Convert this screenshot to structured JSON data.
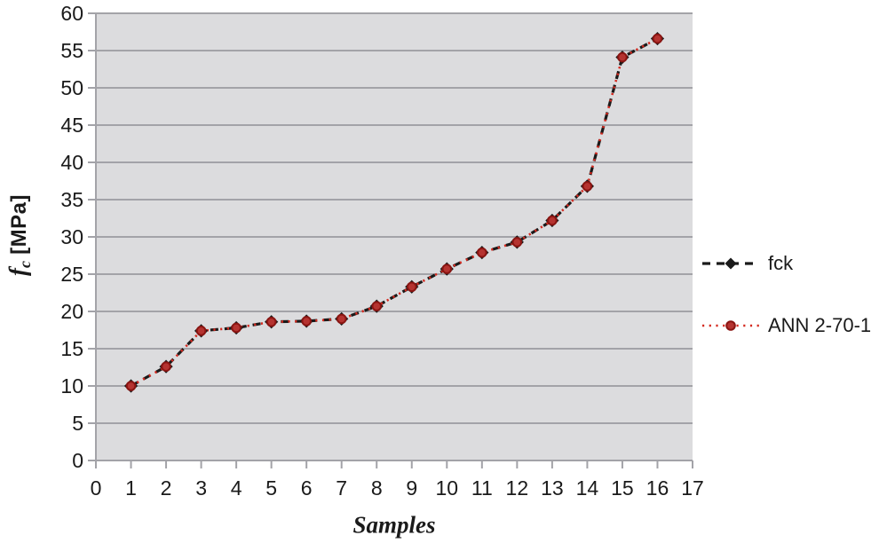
{
  "chart_data": {
    "type": "line",
    "title": "",
    "xlabel": "Samples",
    "ylabel": "fc [MPa]",
    "ylabel_rich": {
      "symbol": "f",
      "subscript": "c",
      "units": "[MPa]"
    },
    "x": [
      1,
      2,
      3,
      4,
      5,
      6,
      7,
      8,
      9,
      10,
      11,
      12,
      13,
      14,
      15,
      16
    ],
    "series": [
      {
        "name": "fck",
        "line_style": "dash",
        "marker": "diamond",
        "color": "#1a1a1a",
        "marker_fill": "#1a1a1a",
        "marker_stroke": "#1a1a1a",
        "values": [
          10.0,
          12.6,
          17.4,
          17.8,
          18.6,
          18.7,
          19.0,
          20.7,
          23.3,
          25.7,
          27.9,
          29.3,
          32.2,
          36.8,
          54.1,
          56.6
        ]
      },
      {
        "name": "ANN 2-70-1",
        "line_style": "dot",
        "marker": "circle",
        "color": "#d42a20",
        "marker_fill": "#b53330",
        "marker_stroke": "#8a1512",
        "values": [
          10.0,
          12.6,
          17.4,
          17.8,
          18.6,
          18.7,
          19.0,
          20.7,
          23.3,
          25.7,
          27.9,
          29.3,
          32.2,
          36.8,
          54.1,
          56.6
        ]
      }
    ],
    "xlim": [
      0,
      17
    ],
    "ylim": [
      0,
      60
    ],
    "x_tick_step": 1,
    "y_tick_step": 5,
    "x_tick_labels": [
      "0",
      "1",
      "2",
      "3",
      "4",
      "5",
      "6",
      "7",
      "8",
      "9",
      "10",
      "11",
      "12",
      "13",
      "14",
      "15",
      "16",
      "17"
    ],
    "y_tick_labels": [
      "0",
      "5",
      "10",
      "15",
      "20",
      "25",
      "30",
      "35",
      "40",
      "45",
      "50",
      "55",
      "60"
    ],
    "grid": "horizontal",
    "legend_position": "right",
    "colors": {
      "plot_background": "#dcdcde",
      "grid_line": "#a3a3a8",
      "axis_text": "#1a1a1a",
      "page_background": "#ffffff"
    }
  }
}
